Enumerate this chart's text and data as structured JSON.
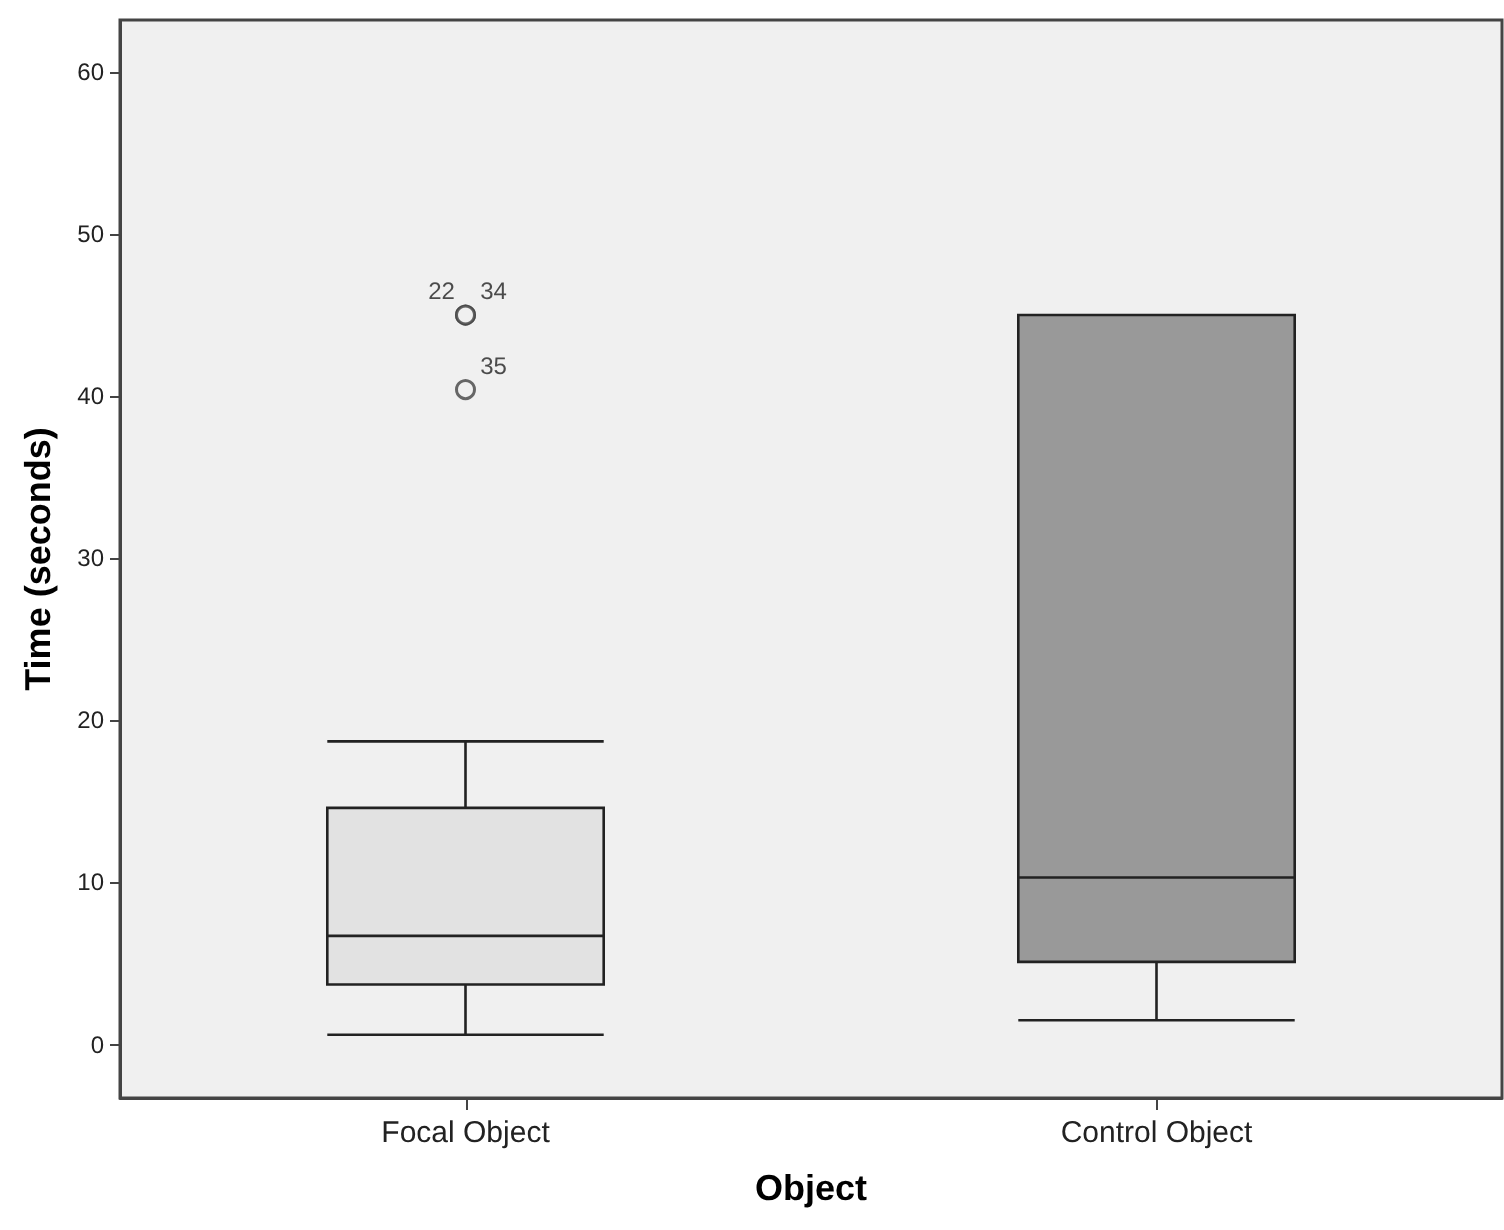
{
  "chart_data": {
    "type": "box",
    "xlabel": "Object",
    "ylabel": "Time (seconds)",
    "categories": [
      "Focal Object",
      "Control Object"
    ],
    "colors": [
      "#e2e2e2",
      "#999999"
    ],
    "boxes": [
      {
        "low": 0.6,
        "q1": 3.7,
        "median": 6.7,
        "q3": 14.6,
        "high": 18.7,
        "outliers": [
          45,
          45,
          40.4
        ]
      },
      {
        "low": 1.5,
        "q1": 5.1,
        "median": 10.3,
        "q3": 45,
        "high": 45
      }
    ],
    "ylim": [
      -3.3,
      63.2
    ],
    "yticks": [
      0,
      10,
      20,
      30,
      40,
      50,
      60
    ],
    "grid": false,
    "annotations": [
      "22",
      "34",
      "35"
    ]
  }
}
